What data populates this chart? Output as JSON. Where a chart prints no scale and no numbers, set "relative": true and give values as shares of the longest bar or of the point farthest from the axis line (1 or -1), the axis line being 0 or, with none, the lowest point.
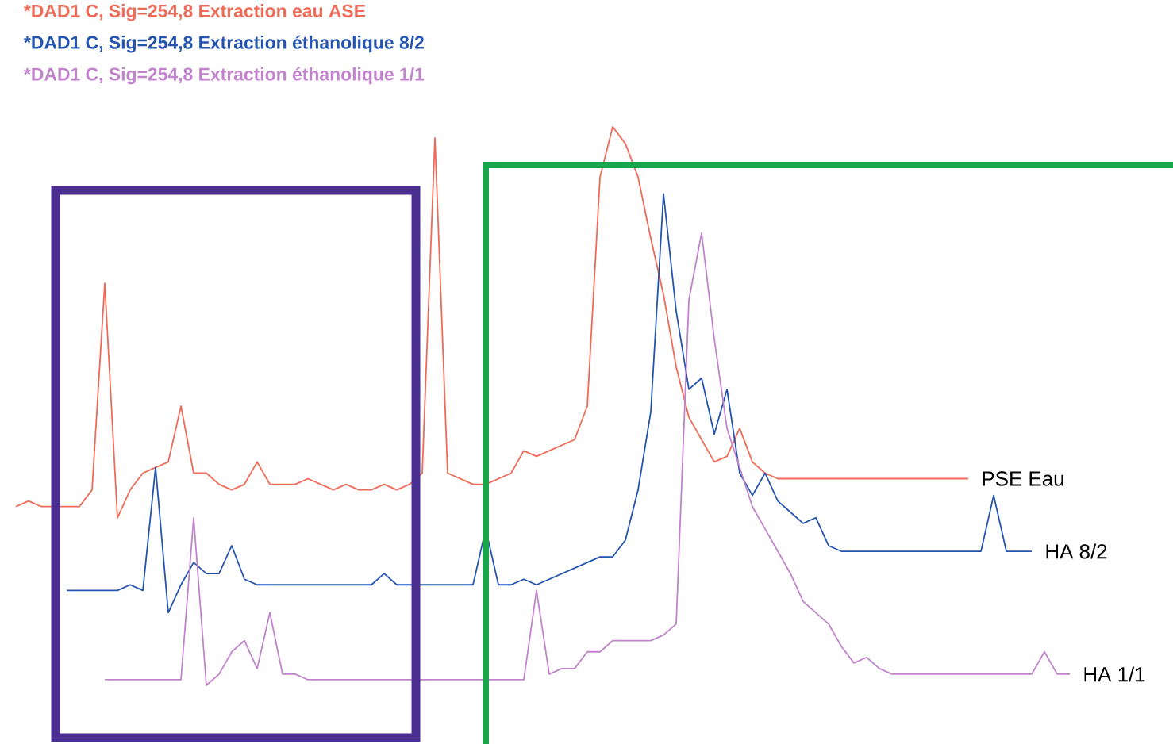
{
  "chart_data": {
    "type": "line",
    "relative": true,
    "legend": "top left",
    "categories": [
      null,
      null,
      null,
      null,
      null,
      null,
      null,
      null,
      null,
      null,
      null,
      null,
      null,
      null,
      null,
      null,
      null,
      null,
      null,
      null,
      null,
      null,
      null,
      null,
      null,
      null,
      null,
      null,
      null,
      null,
      null,
      null,
      null,
      null,
      null,
      null,
      null,
      null,
      null,
      null,
      null,
      null,
      null,
      null,
      null,
      null,
      null,
      null,
      null,
      null,
      null,
      null,
      null,
      null,
      null,
      null,
      null,
      null,
      null,
      null,
      null,
      null,
      null,
      null,
      null,
      null,
      null,
      null,
      null,
      null,
      null,
      null,
      null,
      null,
      null,
      null,
      null,
      null,
      null,
      null,
      null,
      null,
      null,
      null,
      null
    ],
    "series": [
      {
        "name": "*DAD1 C, Sig=254,8 Extraction eau ASE",
        "color": "#f06a58",
        "values": [
          0.32,
          0.33,
          0.32,
          0.32,
          0.32,
          0.32,
          0.35,
          0.72,
          0.3,
          0.35,
          0.38,
          0.39,
          0.4,
          0.5,
          0.38,
          0.38,
          0.36,
          0.35,
          0.36,
          0.4,
          0.36,
          0.36,
          0.36,
          0.37,
          0.36,
          0.35,
          0.36,
          0.35,
          0.35,
          0.36,
          0.35,
          0.36,
          0.38,
          0.98,
          0.38,
          0.37,
          0.36,
          0.36,
          0.37,
          0.38,
          0.42,
          0.41,
          0.42,
          0.43,
          0.44,
          0.5,
          0.91,
          1.0,
          0.97,
          0.91,
          0.8,
          0.7,
          0.57,
          0.48,
          0.44,
          0.4,
          0.41,
          0.46,
          0.4,
          0.38,
          0.37,
          0.37,
          0.37,
          0.37,
          0.37,
          0.37,
          0.37,
          0.37,
          0.37,
          0.37,
          0.37,
          0.37,
          0.37,
          0.37,
          0.37,
          0.37,
          null,
          null,
          null,
          null,
          null,
          null,
          null,
          null,
          null
        ]
      },
      {
        "name": "*DAD1 C, Sig=254,8 Extraction éthanolique 8/2",
        "color": "#2554b0",
        "values": [
          null,
          null,
          null,
          null,
          0.17,
          0.17,
          0.17,
          0.17,
          0.17,
          0.18,
          0.17,
          0.39,
          0.13,
          0.18,
          0.22,
          0.2,
          0.2,
          0.25,
          0.19,
          0.18,
          0.18,
          0.18,
          0.18,
          0.18,
          0.18,
          0.18,
          0.18,
          0.18,
          0.18,
          0.2,
          0.18,
          0.18,
          0.18,
          0.18,
          0.18,
          0.18,
          0.18,
          0.28,
          0.18,
          0.18,
          0.19,
          0.18,
          0.19,
          0.2,
          0.21,
          0.22,
          0.23,
          0.23,
          0.26,
          0.35,
          0.49,
          0.88,
          0.67,
          0.53,
          0.55,
          0.45,
          0.53,
          0.38,
          0.34,
          0.38,
          0.33,
          0.31,
          0.29,
          0.3,
          0.25,
          0.24,
          0.24,
          0.24,
          0.24,
          0.24,
          0.24,
          0.24,
          0.24,
          0.24,
          0.24,
          0.24,
          0.24,
          0.34,
          0.24,
          0.24,
          0.24,
          null,
          null,
          null,
          null
        ]
      },
      {
        "name": "*DAD1 C, Sig=254,8 Extraction éthanolique 1/1",
        "color": "#c184cc",
        "values": [
          null,
          null,
          null,
          null,
          null,
          null,
          null,
          0.01,
          0.01,
          0.01,
          0.01,
          0.01,
          0.01,
          0.01,
          0.3,
          0,
          0.02,
          0.06,
          0.08,
          0.03,
          0.13,
          0.02,
          0.02,
          0.01,
          0.01,
          0.01,
          0.01,
          0.01,
          0.01,
          0.01,
          0.01,
          0.01,
          0.01,
          0.01,
          0.01,
          0.01,
          0.01,
          0.01,
          0.01,
          0.01,
          0.01,
          0.17,
          0.02,
          0.03,
          0.03,
          0.06,
          0.06,
          0.08,
          0.08,
          0.08,
          0.08,
          0.09,
          0.11,
          0.69,
          0.81,
          0.62,
          0.46,
          0.39,
          0.32,
          0.28,
          0.24,
          0.2,
          0.15,
          0.13,
          0.11,
          0.07,
          0.04,
          0.05,
          0.03,
          0.02,
          0.02,
          0.02,
          0.02,
          0.02,
          0.02,
          0.02,
          0.02,
          0.02,
          0.02,
          0.02,
          0.02,
          0.06,
          0.02,
          0.02,
          null
        ]
      }
    ],
    "annotations": [
      "PSE Eau",
      "HA  8/2",
      "HA  1/1"
    ]
  }
}
